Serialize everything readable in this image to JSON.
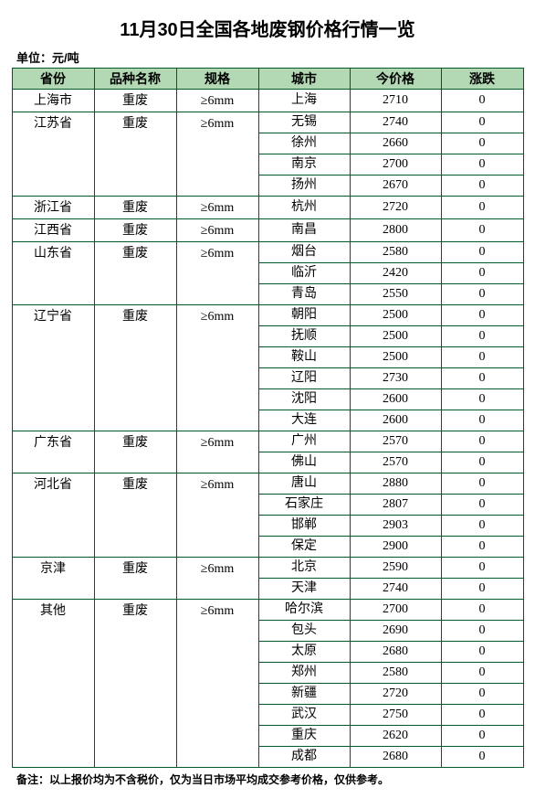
{
  "title": "11月30日全国各地废钢价格行情一览",
  "unit_label": "单位：元/吨",
  "note": "备注：以上报价均为不含税价，仅为当日市场平均成交参考价格，仅供参考。",
  "headers": {
    "province": "省份",
    "variety": "品种名称",
    "spec": "规格",
    "city": "城市",
    "price": "今价格",
    "change": "涨跌"
  },
  "colors": {
    "header_bg": "#b2d8b4",
    "border": "#005826",
    "text": "#000000",
    "background": "#ffffff"
  },
  "groups": [
    {
      "province": "上海市",
      "variety": "重废",
      "spec": "≥6mm",
      "rows": [
        {
          "city": "上海",
          "price": "2710",
          "change": "0"
        }
      ]
    },
    {
      "province": "江苏省",
      "variety": "重废",
      "spec": "≥6mm",
      "rows": [
        {
          "city": "无锡",
          "price": "2740",
          "change": "0"
        },
        {
          "city": "徐州",
          "price": "2660",
          "change": "0"
        },
        {
          "city": "南京",
          "price": "2700",
          "change": "0"
        },
        {
          "city": "扬州",
          "price": "2670",
          "change": "0"
        }
      ]
    },
    {
      "province": "浙江省",
      "variety": "重废",
      "spec": "≥6mm",
      "rows": [
        {
          "city": "杭州",
          "price": "2720",
          "change": "0"
        }
      ]
    },
    {
      "province": "江西省",
      "variety": "重废",
      "spec": "≥6mm",
      "rows": [
        {
          "city": "南昌",
          "price": "2800",
          "change": "0"
        }
      ]
    },
    {
      "province": "山东省",
      "variety": "重废",
      "spec": "≥6mm",
      "rows": [
        {
          "city": "烟台",
          "price": "2580",
          "change": "0"
        },
        {
          "city": "临沂",
          "price": "2420",
          "change": "0"
        },
        {
          "city": "青岛",
          "price": "2550",
          "change": "0"
        }
      ]
    },
    {
      "province": "辽宁省",
      "variety": "重废",
      "spec": "≥6mm",
      "rows": [
        {
          "city": "朝阳",
          "price": "2500",
          "change": "0"
        },
        {
          "city": "抚顺",
          "price": "2500",
          "change": "0"
        },
        {
          "city": "鞍山",
          "price": "2500",
          "change": "0"
        },
        {
          "city": "辽阳",
          "price": "2730",
          "change": "0"
        },
        {
          "city": "沈阳",
          "price": "2600",
          "change": "0"
        },
        {
          "city": "大连",
          "price": "2600",
          "change": "0"
        }
      ]
    },
    {
      "province": "广东省",
      "variety": "重废",
      "spec": "≥6mm",
      "rows": [
        {
          "city": "广州",
          "price": "2570",
          "change": "0"
        },
        {
          "city": "佛山",
          "price": "2570",
          "change": "0"
        }
      ]
    },
    {
      "province": "河北省",
      "variety": "重废",
      "spec": "≥6mm",
      "rows": [
        {
          "city": "唐山",
          "price": "2880",
          "change": "0"
        },
        {
          "city": "石家庄",
          "price": "2807",
          "change": "0"
        },
        {
          "city": "邯郸",
          "price": "2903",
          "change": "0"
        },
        {
          "city": "保定",
          "price": "2900",
          "change": "0"
        }
      ]
    },
    {
      "province": "京津",
      "variety": "重废",
      "spec": "≥6mm",
      "rows": [
        {
          "city": "北京",
          "price": "2590",
          "change": "0"
        },
        {
          "city": "天津",
          "price": "2740",
          "change": "0"
        }
      ]
    },
    {
      "province": "其他",
      "variety": "重废",
      "spec": "≥6mm",
      "rows": [
        {
          "city": "哈尔滨",
          "price": "2700",
          "change": "0"
        },
        {
          "city": "包头",
          "price": "2690",
          "change": "0"
        },
        {
          "city": "太原",
          "price": "2680",
          "change": "0"
        },
        {
          "city": "郑州",
          "price": "2580",
          "change": "0"
        },
        {
          "city": "新疆",
          "price": "2720",
          "change": "0"
        },
        {
          "city": "武汉",
          "price": "2750",
          "change": "0"
        },
        {
          "city": "重庆",
          "price": "2620",
          "change": "0"
        },
        {
          "city": "成都",
          "price": "2680",
          "change": "0"
        }
      ]
    }
  ]
}
